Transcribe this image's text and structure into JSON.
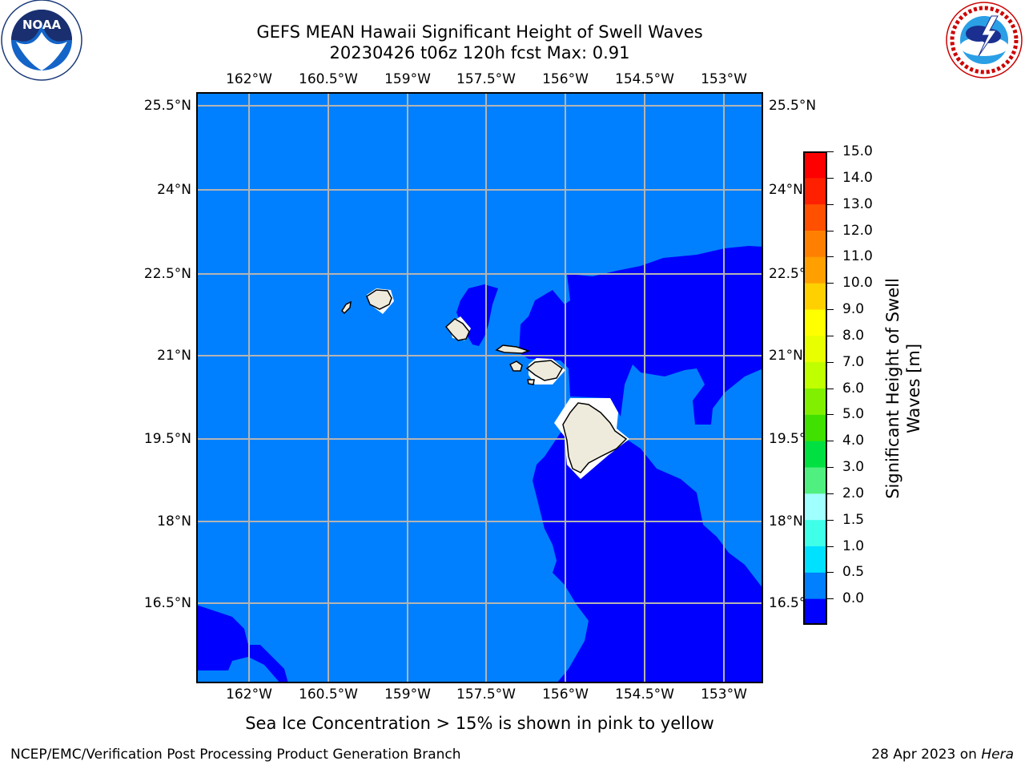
{
  "title": {
    "line1": "GEFS MEAN Hawaii Significant Height of Swell Waves",
    "line2": "20230426 t06z 120h fcst   Max: 0.91"
  },
  "map": {
    "lon_ticks": [
      "162°W",
      "160.5°W",
      "159°W",
      "157.5°W",
      "156°W",
      "154.5°W",
      "153°W"
    ],
    "lat_ticks": [
      "25.5°N",
      "24°N",
      "22.5°N",
      "21°N",
      "19.5°N",
      "18°N",
      "16.5°N"
    ],
    "ocean_fill_colors": {
      "band_0_0.5": "#0000ff",
      "band_0.5_1.0": "#0080ff"
    },
    "land_color": "#efebdc",
    "grid": true
  },
  "colorbar": {
    "ticks": [
      "15.0",
      "14.0",
      "13.0",
      "12.0",
      "11.0",
      "10.0",
      "9.0",
      "8.0",
      "7.0",
      "6.0",
      "5.0",
      "4.0",
      "3.0",
      "2.0",
      "1.5",
      "1.0",
      "0.5",
      "0.0"
    ],
    "colors": [
      "#0000ff",
      "#0080ff",
      "#00e0ff",
      "#40ffe8",
      "#a0ffff",
      "#50f080",
      "#00e040",
      "#40e000",
      "#80f000",
      "#c0ff00",
      "#e8ff00",
      "#ffff00",
      "#ffd000",
      "#ffa000",
      "#ff8000",
      "#ff5000",
      "#ff2000",
      "#ff0000"
    ],
    "label_line1": "Significant Height of Swell",
    "label_line2": "Waves [m]"
  },
  "footnote": "Sea Ice Concentration > 15% is shown in pink to yellow",
  "footer": {
    "left": "NCEP/EMC/Verification Post Processing Product Generation Branch",
    "right_date": "28 Apr 2023 on ",
    "right_host": "Hera"
  },
  "logos": {
    "noaa_text": "NOAA",
    "nws_icon": "nws-logo-icon"
  }
}
